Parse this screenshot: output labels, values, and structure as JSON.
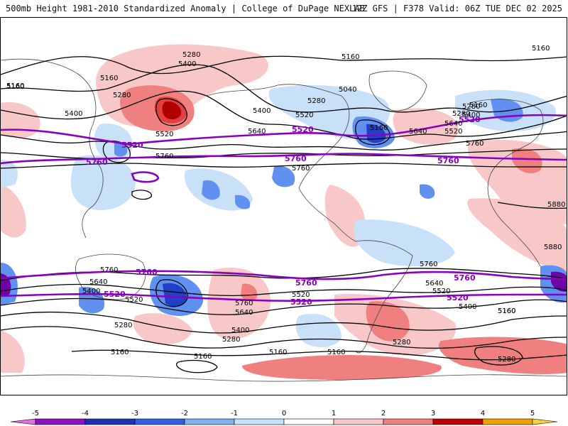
{
  "header": {
    "left_title": "500mb Height 1981-2010 Standardized Anomaly | College of DuPage NEXLAB",
    "right_title": "12Z GFS | F378 Valid: 06Z TUE DEC 02 2025"
  },
  "colors": {
    "anom_pos_1": "#f8c8c8",
    "anom_pos_2": "#f08080",
    "anom_pos_3": "#e04040",
    "anom_pos_4": "#b00000",
    "anom_neg_1": "#c8e0f8",
    "anom_neg_2": "#6090f0",
    "anom_neg_3": "#2040c8",
    "anom_neg_4": "#7000a8",
    "contour_black": "#000000",
    "contour_purple": "#8a00c0",
    "coastline": "#444444"
  },
  "colorbar": {
    "ticks": [
      "-5",
      "-4",
      "-3",
      "-2",
      "-1",
      "0",
      "1",
      "2",
      "3",
      "4",
      "5"
    ],
    "segments": [
      {
        "from": -5.5,
        "to": -5,
        "color": "#e070e0"
      },
      {
        "from": -5,
        "to": -4,
        "color": "#9010c0"
      },
      {
        "from": -4,
        "to": -3,
        "color": "#2030b0"
      },
      {
        "from": -3,
        "to": -2,
        "color": "#3060e0"
      },
      {
        "from": -2,
        "to": -1,
        "color": "#80b0f0"
      },
      {
        "from": -1,
        "to": 0,
        "color": "#c8e0f8"
      },
      {
        "from": 0,
        "to": 1,
        "color": "#ffffff"
      },
      {
        "from": 1,
        "to": 2,
        "color": "#f8c8c8"
      },
      {
        "from": 2,
        "to": 3,
        "color": "#f08080"
      },
      {
        "from": 3,
        "to": 4,
        "color": "#c00000"
      },
      {
        "from": 4,
        "to": 5,
        "color": "#f0a000"
      },
      {
        "from": 5,
        "to": 5.5,
        "color": "#f8d040"
      }
    ]
  },
  "contour_labels": {
    "black": [
      "5160",
      "5160",
      "5160",
      "5280",
      "5400",
      "5160",
      "5160",
      "5280",
      "5400",
      "5040",
      "5280",
      "5520",
      "5400",
      "5280",
      "5160",
      "5520",
      "5640",
      "5640",
      "5520",
      "5160",
      "5280",
      "5400",
      "5640",
      "5760",
      "5760",
      "5760",
      "5880",
      "5880",
      "5760",
      "5640",
      "5400",
      "5280",
      "5160",
      "5520",
      "5760",
      "5640",
      "5400",
      "5280",
      "5160",
      "5160",
      "5160",
      "5160",
      "5520",
      "5760",
      "5640",
      "5520",
      "5400",
      "5280",
      "5160",
      "5280"
    ],
    "purple": [
      "5520",
      "5520",
      "5760",
      "5760",
      "5760",
      "5520",
      "5760",
      "5760",
      "5520",
      "5520",
      "5520",
      "5760"
    ]
  }
}
